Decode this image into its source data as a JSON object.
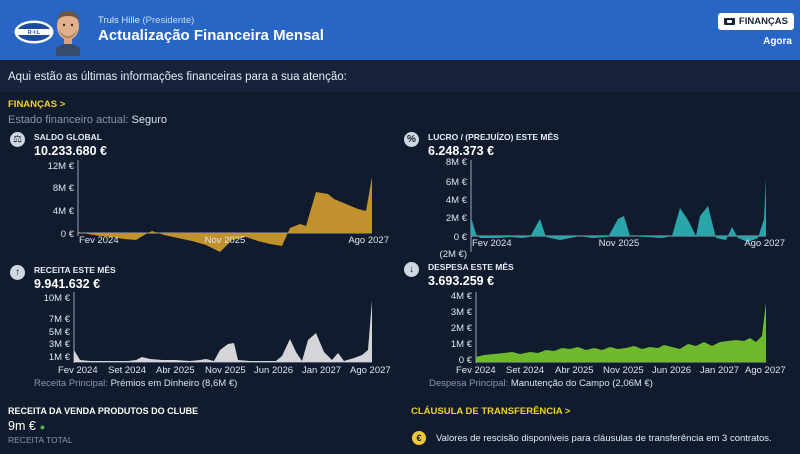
{
  "header": {
    "sender_name": "Truls Hille",
    "sender_role": "(Presidente)",
    "title": "Actualização Financeira Mensal",
    "club_logo_text": "R·I·L",
    "tag_label": "FINANÇAS",
    "time_label": "Agora"
  },
  "intro": "Aqui estão as últimas informações financeiras para a sua atenção:",
  "finances": {
    "section_link": "FINANÇAS >",
    "status_label": "Estado financeiro actual:",
    "status_value": "Seguro"
  },
  "colors": {
    "header_blue": "#2766c4",
    "balance_fill": "#c0912d",
    "profit_fill": "#2aa5aa",
    "revenue_fill": "#d3d5d8",
    "expense_fill": "#6fba2c",
    "accent_yellow": "#f0d22c"
  },
  "charts": {
    "balance": {
      "icon": "scale-icon",
      "icon_glyph": "⚖",
      "label": "SALDO GLOBAL",
      "value": "10.233.680 €",
      "y_ticks": [
        "12M €",
        "8M €",
        "4M €",
        "0 €"
      ],
      "x_ticks": [
        "Fev 2024",
        "Nov 2025",
        "Ago 2027"
      ]
    },
    "profit": {
      "icon": "percent-icon",
      "icon_glyph": "%",
      "label": "LUCRO / (PREJUÍZO) ESTE MÊS",
      "value": "6.248.373 €",
      "y_ticks": [
        "8M €",
        "6M €",
        "4M €",
        "2M €",
        "0 €",
        "(2M €)"
      ],
      "x_ticks": [
        "Fev 2024",
        "Nov 2025",
        "Ago 2027"
      ]
    },
    "revenue": {
      "icon": "arrow-up-icon",
      "icon_glyph": "↑",
      "label": "RECEITA ESTE MÊS",
      "value": "9.941.632 €",
      "y_ticks": [
        "10M €",
        "7M €",
        "5M €",
        "3M €",
        "1M €"
      ],
      "x_ticks": [
        "Fev 2024",
        "Set 2024",
        "Abr 2025",
        "Nov 2025",
        "Jun 2026",
        "Jan 2027",
        "Ago 2027"
      ],
      "note_label": "Receita Principal:",
      "note_value": "Prémios em Dinheiro (8,6M €)"
    },
    "expense": {
      "icon": "arrow-down-icon",
      "icon_glyph": "↓",
      "label": "DESPESA ESTE MÊS",
      "value": "3.693.259 €",
      "y_ticks": [
        "4M €",
        "3M €",
        "2M €",
        "1M €",
        "0 €"
      ],
      "x_ticks": [
        "Fev 2024",
        "Set 2024",
        "Abr 2025",
        "Nov 2025",
        "Jun 2026",
        "Jan 2027",
        "Ago 2027"
      ],
      "note_label": "Despesa Principal:",
      "note_value": "Manutenção do Campo (2,06M €)"
    }
  },
  "merch": {
    "title": "RECEITA DA VENDA PRODUTOS DO CLUBE",
    "value": "9m €",
    "trend_glyph": "●",
    "caption": "RECEITA TOTAL"
  },
  "clause": {
    "section_link": "CLÁUSULA DE TRANSFERÊNCIA >",
    "icon_glyph": "€",
    "text": "Valores de rescisão disponíveis para cláusulas de transferência em 3 contratos."
  }
}
